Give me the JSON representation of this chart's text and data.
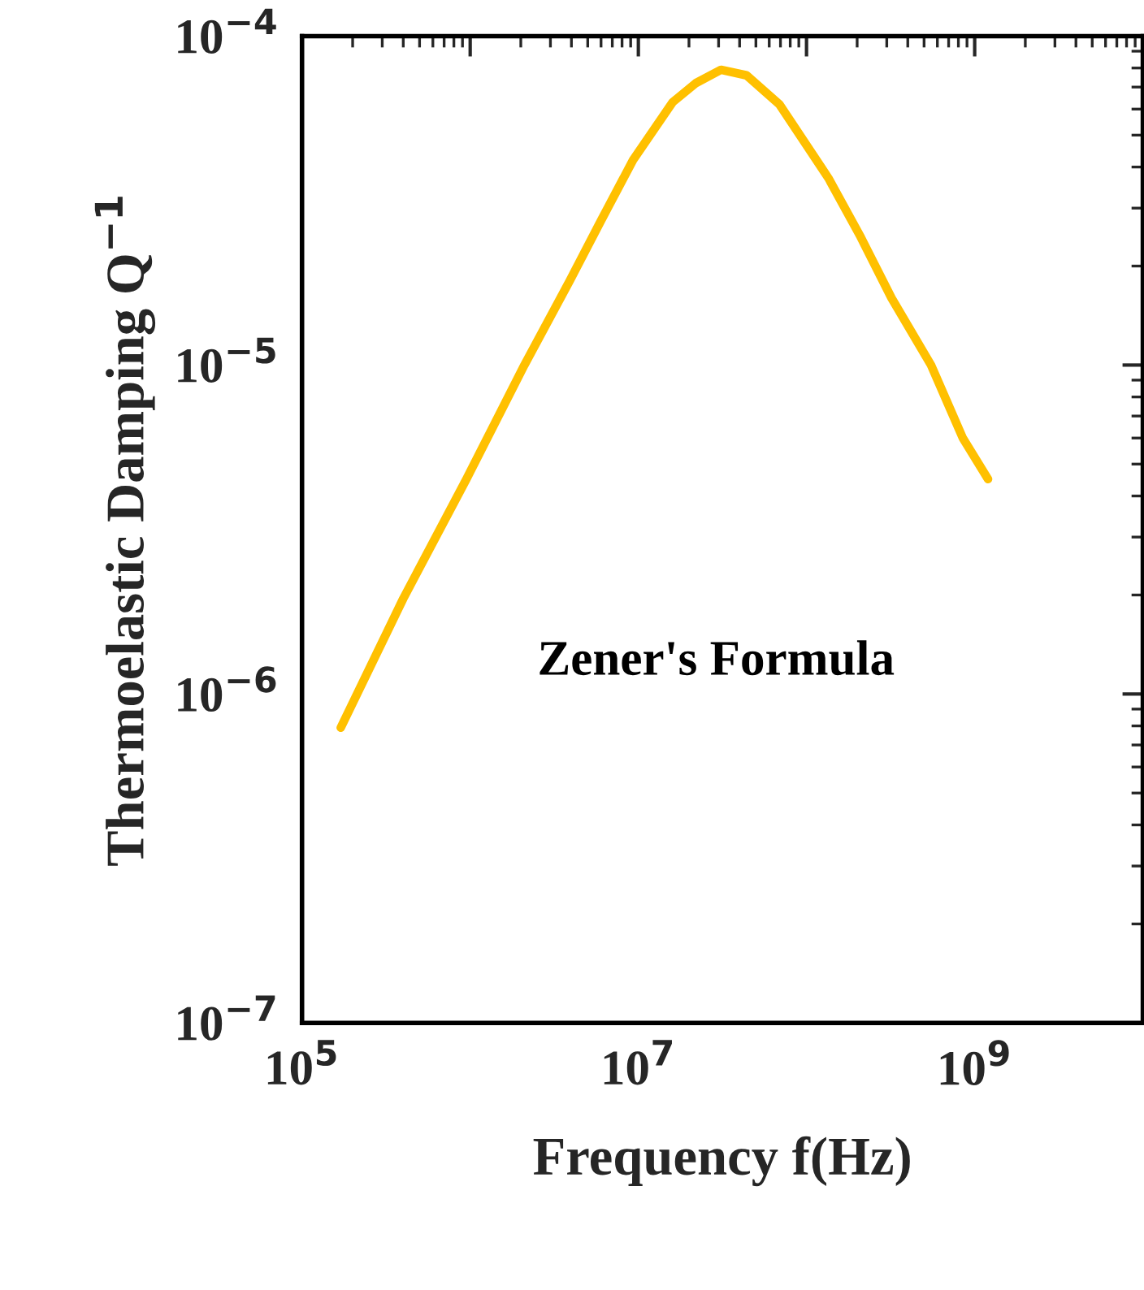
{
  "chart_data": {
    "type": "line",
    "xlabel": "Frequency f(Hz)",
    "ylabel": "Thermoelastic Damping Q$^{−1}$",
    "log": "xy",
    "grid": false,
    "legend": false,
    "xlim": [
      100000,
      10000000000
    ],
    "ylim": [
      1e-07,
      0.0001
    ],
    "xticks": [
      {
        "value": 100000,
        "label": "10$^{5}$"
      },
      {
        "value": 1000000,
        "label": null
      },
      {
        "value": 10000000,
        "label": "10$^{7}$"
      },
      {
        "value": 100000000,
        "label": null
      },
      {
        "value": 1000000000,
        "label": "10$^{9}$"
      }
    ],
    "yticks": [
      {
        "value": 1e-07,
        "label": "10$^{−7}$"
      },
      {
        "value": 1e-06,
        "label": "10$^{−6}$"
      },
      {
        "value": 1e-05,
        "label": "10$^{−5}$"
      },
      {
        "value": 0.0001,
        "label": "10$^{−4}$"
      }
    ],
    "series": [
      {
        "name": "Zener's Formula",
        "color": "#ffc000",
        "x": [
          170000,
          400000,
          950000,
          2100000,
          3900000,
          6000000,
          9300000,
          16000000,
          22000000,
          31000000,
          44000000,
          69000000,
          135000000,
          210000000,
          320000000,
          550000000,
          850000000,
          1200000000
        ],
        "values": [
          7.9e-07,
          1.95e-06,
          4.5e-06,
          1e-05,
          1.8e-05,
          2.75e-05,
          4.2e-05,
          6.3e-05,
          7.2e-05,
          7.9e-05,
          7.6e-05,
          6.2e-05,
          3.7e-05,
          2.45e-05,
          1.6e-05,
          1e-05,
          6e-06,
          4.5e-06
        ]
      }
    ]
  }
}
